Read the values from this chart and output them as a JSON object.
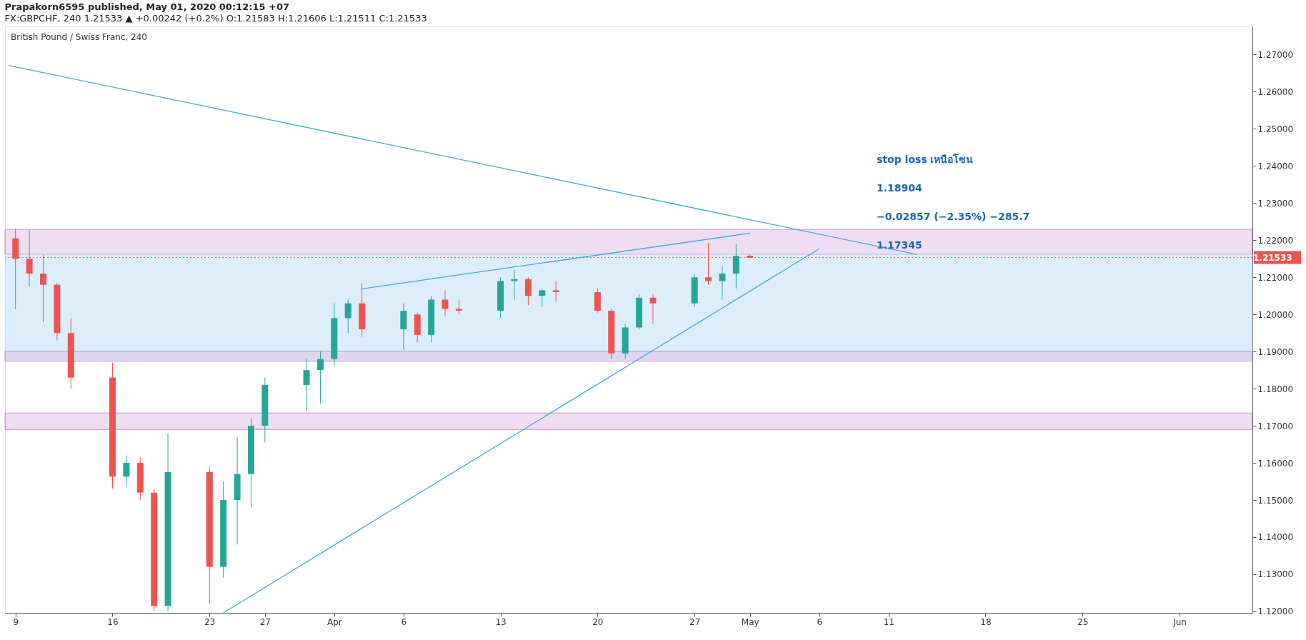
{
  "chart_data": {
    "type": "candlestick",
    "title": "Prapakorn6595 published, May 01, 2020 00:12:15 +07",
    "subtitle": "FX:GBPCHF, 240  1.21533 ▲ +0.00242 (+0.2%) O:1.21583 H:1.21606 L:1.21511 C:1.21533",
    "x": [
      "2020-03-09",
      "2020-03-10",
      "2020-03-11",
      "2020-03-12",
      "2020-03-13",
      "2020-03-16",
      "2020-03-17",
      "2020-03-18",
      "2020-03-19",
      "2020-03-20",
      "2020-03-23",
      "2020-03-24",
      "2020-03-25",
      "2020-03-26",
      "2020-03-27",
      "2020-03-30",
      "2020-03-31",
      "2020-04-01",
      "2020-04-02",
      "2020-04-03",
      "2020-04-06",
      "2020-04-07",
      "2020-04-08",
      "2020-04-09",
      "2020-04-10",
      "2020-04-13",
      "2020-04-14",
      "2020-04-15",
      "2020-04-16",
      "2020-04-17",
      "2020-04-20",
      "2020-04-21",
      "2020-04-22",
      "2020-04-23",
      "2020-04-24",
      "2020-04-27",
      "2020-04-28",
      "2020-04-29",
      "2020-04-30",
      "2020-05-01"
    ],
    "ohlc": [
      [
        1.2205,
        1.2232,
        1.2014,
        1.215
      ],
      [
        1.215,
        1.2228,
        1.2075,
        1.211
      ],
      [
        1.211,
        1.216,
        1.198,
        1.208
      ],
      [
        1.208,
        1.2085,
        1.193,
        1.195
      ],
      [
        1.195,
        1.199,
        1.18,
        1.183
      ],
      [
        1.183,
        1.187,
        1.153,
        1.1563
      ],
      [
        1.1563,
        1.162,
        1.1535,
        1.16
      ],
      [
        1.16,
        1.1615,
        1.15,
        1.152
      ],
      [
        1.152,
        1.153,
        1.12,
        1.1215
      ],
      [
        1.1215,
        1.168,
        1.12,
        1.1575
      ],
      [
        1.1575,
        1.159,
        1.122,
        1.132
      ],
      [
        1.132,
        1.155,
        1.129,
        1.15
      ],
      [
        1.15,
        1.167,
        1.138,
        1.157
      ],
      [
        1.157,
        1.172,
        1.148,
        1.17
      ],
      [
        1.17,
        1.183,
        1.1655,
        1.181
      ],
      [
        1.181,
        1.188,
        1.174,
        1.185
      ],
      [
        1.185,
        1.19,
        1.176,
        1.188
      ],
      [
        1.188,
        1.203,
        1.186,
        1.199
      ],
      [
        1.199,
        1.204,
        1.195,
        1.203
      ],
      [
        1.203,
        1.2085,
        1.194,
        1.196
      ],
      [
        1.196,
        1.203,
        1.1905,
        1.201
      ],
      [
        1.2,
        1.2005,
        1.1925,
        1.1945
      ],
      [
        1.1945,
        1.205,
        1.1925,
        1.204
      ],
      [
        1.204,
        1.2065,
        1.1995,
        1.2015
      ],
      [
        1.2015,
        1.204,
        1.2,
        1.201
      ],
      [
        1.201,
        1.21,
        1.199,
        1.209
      ],
      [
        1.209,
        1.212,
        1.204,
        1.2095
      ],
      [
        1.2095,
        1.21,
        1.2025,
        1.205
      ],
      [
        1.205,
        1.207,
        1.202,
        1.2065
      ],
      [
        1.2065,
        1.209,
        1.2035,
        1.206
      ],
      [
        1.206,
        1.207,
        1.2005,
        1.201
      ],
      [
        1.201,
        1.2015,
        1.188,
        1.1895
      ],
      [
        1.1895,
        1.1975,
        1.188,
        1.1965
      ],
      [
        1.1965,
        1.2055,
        1.196,
        1.2045
      ],
      [
        1.2045,
        1.2055,
        1.1975,
        1.203
      ],
      [
        1.203,
        1.211,
        1.202,
        1.21
      ],
      [
        1.21,
        1.2192,
        1.208,
        1.209
      ],
      [
        1.209,
        1.213,
        1.204,
        1.211
      ],
      [
        1.211,
        1.219,
        1.207,
        1.2158
      ],
      [
        1.21583,
        1.21606,
        1.21511,
        1.21533
      ]
    ],
    "series": [
      {
        "type": "line",
        "color": "#42a5f5",
        "x": [
          "2020-03-08T12:00",
          "2020-05-13"
        ],
        "values": [
          1.2671,
          1.2162
        ]
      },
      {
        "type": "line",
        "color": "#42a5f5",
        "x": [
          "2020-03-24",
          "2020-05-06"
        ],
        "values": [
          1.1196,
          1.2177
        ]
      },
      {
        "type": "line",
        "color": "#42a5f5",
        "x": [
          "2020-04-03",
          "2020-05-01"
        ],
        "values": [
          1.2069,
          1.2219
        ]
      }
    ],
    "xlim": [
      "2020-03-08T12:00",
      "2020-06-06"
    ],
    "xticks": [
      {
        "value": "2020-03-09",
        "label": "9"
      },
      {
        "value": "2020-03-16",
        "label": "16"
      },
      {
        "value": "2020-03-23",
        "label": "23"
      },
      {
        "value": "2020-03-27",
        "label": "27"
      },
      {
        "value": "2020-04-01",
        "label": "Apr"
      },
      {
        "value": "2020-04-06",
        "label": "6"
      },
      {
        "value": "2020-04-13",
        "label": "13"
      },
      {
        "value": "2020-04-20",
        "label": "20"
      },
      {
        "value": "2020-04-27",
        "label": "27"
      },
      {
        "value": "2020-05-01",
        "label": "May"
      },
      {
        "value": "2020-05-06",
        "label": "6"
      },
      {
        "value": "2020-05-11",
        "label": "11"
      },
      {
        "value": "2020-05-18",
        "label": "18"
      },
      {
        "value": "2020-05-25",
        "label": "25"
      },
      {
        "value": "2020-06-01",
        "label": "Jun"
      }
    ],
    "ylim": [
      1.1196,
      1.2776
    ],
    "yticks": [
      {
        "value": 1.12,
        "label": "1.12000"
      },
      {
        "value": 1.13,
        "label": "1.13000"
      },
      {
        "value": 1.14,
        "label": "1.14000"
      },
      {
        "value": 1.15,
        "label": "1.15000"
      },
      {
        "value": 1.16,
        "label": "1.16000"
      },
      {
        "value": 1.17,
        "label": "1.17000"
      },
      {
        "value": 1.18,
        "label": "1.18000"
      },
      {
        "value": 1.19,
        "label": "1.19000"
      },
      {
        "value": 1.2,
        "label": "1.20000"
      },
      {
        "value": 1.21,
        "label": "1.21000"
      },
      {
        "value": 1.22,
        "label": "1.22000"
      },
      {
        "value": 1.23,
        "label": "1.23000"
      },
      {
        "value": 1.24,
        "label": "1.24000"
      },
      {
        "value": 1.25,
        "label": "1.25000"
      },
      {
        "value": 1.26,
        "label": "1.26000"
      },
      {
        "value": 1.27,
        "label": "1.27000"
      }
    ],
    "bands": [
      {
        "axis": "y",
        "from": 1.2162,
        "to": 1.2229,
        "color": "#e1bee7"
      },
      {
        "axis": "y",
        "from": 1.1877,
        "to": 1.2163,
        "color": "#bbdefb"
      },
      {
        "axis": "y",
        "from": 1.1874,
        "to": 1.1901,
        "color": "#e1bee7"
      },
      {
        "axis": "y",
        "from": 1.169,
        "to": 1.17345,
        "color": "#e1bee7"
      }
    ],
    "ref_lines": [
      {
        "axis": "y",
        "value": 1.21533,
        "label": "1.21533",
        "color": "#ef5350",
        "line_style": "dotted"
      }
    ],
    "annotations": [
      "British Pound / Swiss Franc, 240",
      "stop loss เหนือโซน",
      "1.18904",
      "−0.02857 (−2.35%) −285.7",
      "1.17345"
    ],
    "grid": false
  }
}
